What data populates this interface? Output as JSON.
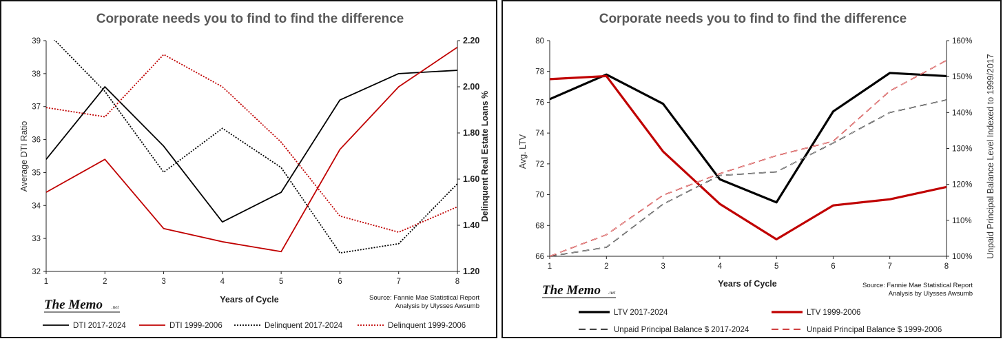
{
  "chart_data": [
    {
      "type": "line",
      "title": "Corporate needs you to find to find the difference",
      "xlabel": "Years of Cycle",
      "ylabel": "Average DTI Ratio",
      "y2label": "Delinquent Real Estate Loans %",
      "x": [
        1,
        2,
        3,
        4,
        5,
        6,
        7,
        8
      ],
      "ylim": [
        32,
        39
      ],
      "y_ticks": [
        32,
        33,
        34,
        35,
        36,
        37,
        38,
        39
      ],
      "y2lim": [
        1.2,
        2.2
      ],
      "y2_ticks": [
        "1.20",
        "1.40",
        "1.60",
        "1.80",
        "2.00",
        "2.20"
      ],
      "grid": false,
      "legend_position": "bottom",
      "series": [
        {
          "name": "DTI  2017-2024",
          "axis": "left",
          "color": "#000000",
          "style": "solid",
          "values": [
            35.4,
            37.6,
            35.8,
            33.5,
            34.4,
            37.2,
            38.0,
            38.1
          ]
        },
        {
          "name": "DTI 1999-2006",
          "axis": "left",
          "color": "#c00000",
          "style": "solid",
          "values": [
            34.4,
            35.4,
            33.3,
            32.9,
            32.6,
            35.7,
            37.6,
            38.8
          ]
        },
        {
          "name": "Delinquent 2017-2024",
          "axis": "right",
          "color": "#000000",
          "style": "dotted",
          "values": [
            2.24,
            1.98,
            1.63,
            1.82,
            1.65,
            1.28,
            1.32,
            1.58
          ]
        },
        {
          "name": "Delinquent 1999-2006",
          "axis": "right",
          "color": "#c00000",
          "style": "dotted",
          "values": [
            1.91,
            1.87,
            2.14,
            2.0,
            1.76,
            1.44,
            1.37,
            1.48
          ]
        }
      ],
      "source": [
        "Source: Fannie Mae Statistical Report",
        "Analysis by Ulysses Awsumb"
      ],
      "logo": {
        "text": "The Memo",
        "suffix": ".net"
      }
    },
    {
      "type": "line",
      "title": "Corporate needs you to find to find the difference",
      "xlabel": "Years of Cycle",
      "ylabel": "Avg. LTV",
      "y2label": "Unpaid Principal Balance  Level Indexed to 1999/2017",
      "x": [
        1,
        2,
        3,
        4,
        5,
        6,
        7,
        8
      ],
      "ylim": [
        66,
        80
      ],
      "y_ticks": [
        66,
        68,
        70,
        72,
        74,
        76,
        78,
        80
      ],
      "y2lim": [
        100,
        160
      ],
      "y2_ticks": [
        "100%",
        "110%",
        "120%",
        "130%",
        "140%",
        "150%",
        "160%"
      ],
      "grid": false,
      "legend_position": "bottom",
      "series": [
        {
          "name": "LTV 2017-2024",
          "axis": "left",
          "color": "#000000",
          "style": "solid",
          "values": [
            76.2,
            77.8,
            75.9,
            71.0,
            69.5,
            75.4,
            77.9,
            77.7
          ]
        },
        {
          "name": "LTV 1999-2006",
          "axis": "left",
          "color": "#c00000",
          "style": "solid",
          "values": [
            77.5,
            77.7,
            72.8,
            69.4,
            67.1,
            69.3,
            69.7,
            70.5
          ]
        },
        {
          "name": "Unpaid Principal Balance $ 2017-2024",
          "axis": "right",
          "color": "#000000",
          "style": "dashed",
          "values": [
            100,
            102.5,
            114.5,
            122.5,
            123.5,
            131.5,
            140,
            143.5
          ]
        },
        {
          "name": "Unpaid Principal Balance $ 1999-2006",
          "axis": "right",
          "color": "#c00000",
          "style": "dashed",
          "values": [
            100,
            106,
            117,
            123,
            128,
            132,
            146,
            154.5
          ]
        }
      ],
      "source": [
        "Source: Fannie Mae Statistical Report",
        "Analysis by Ulysses Awsumb"
      ],
      "logo": {
        "text": "The Memo",
        "suffix": ".net"
      }
    }
  ]
}
